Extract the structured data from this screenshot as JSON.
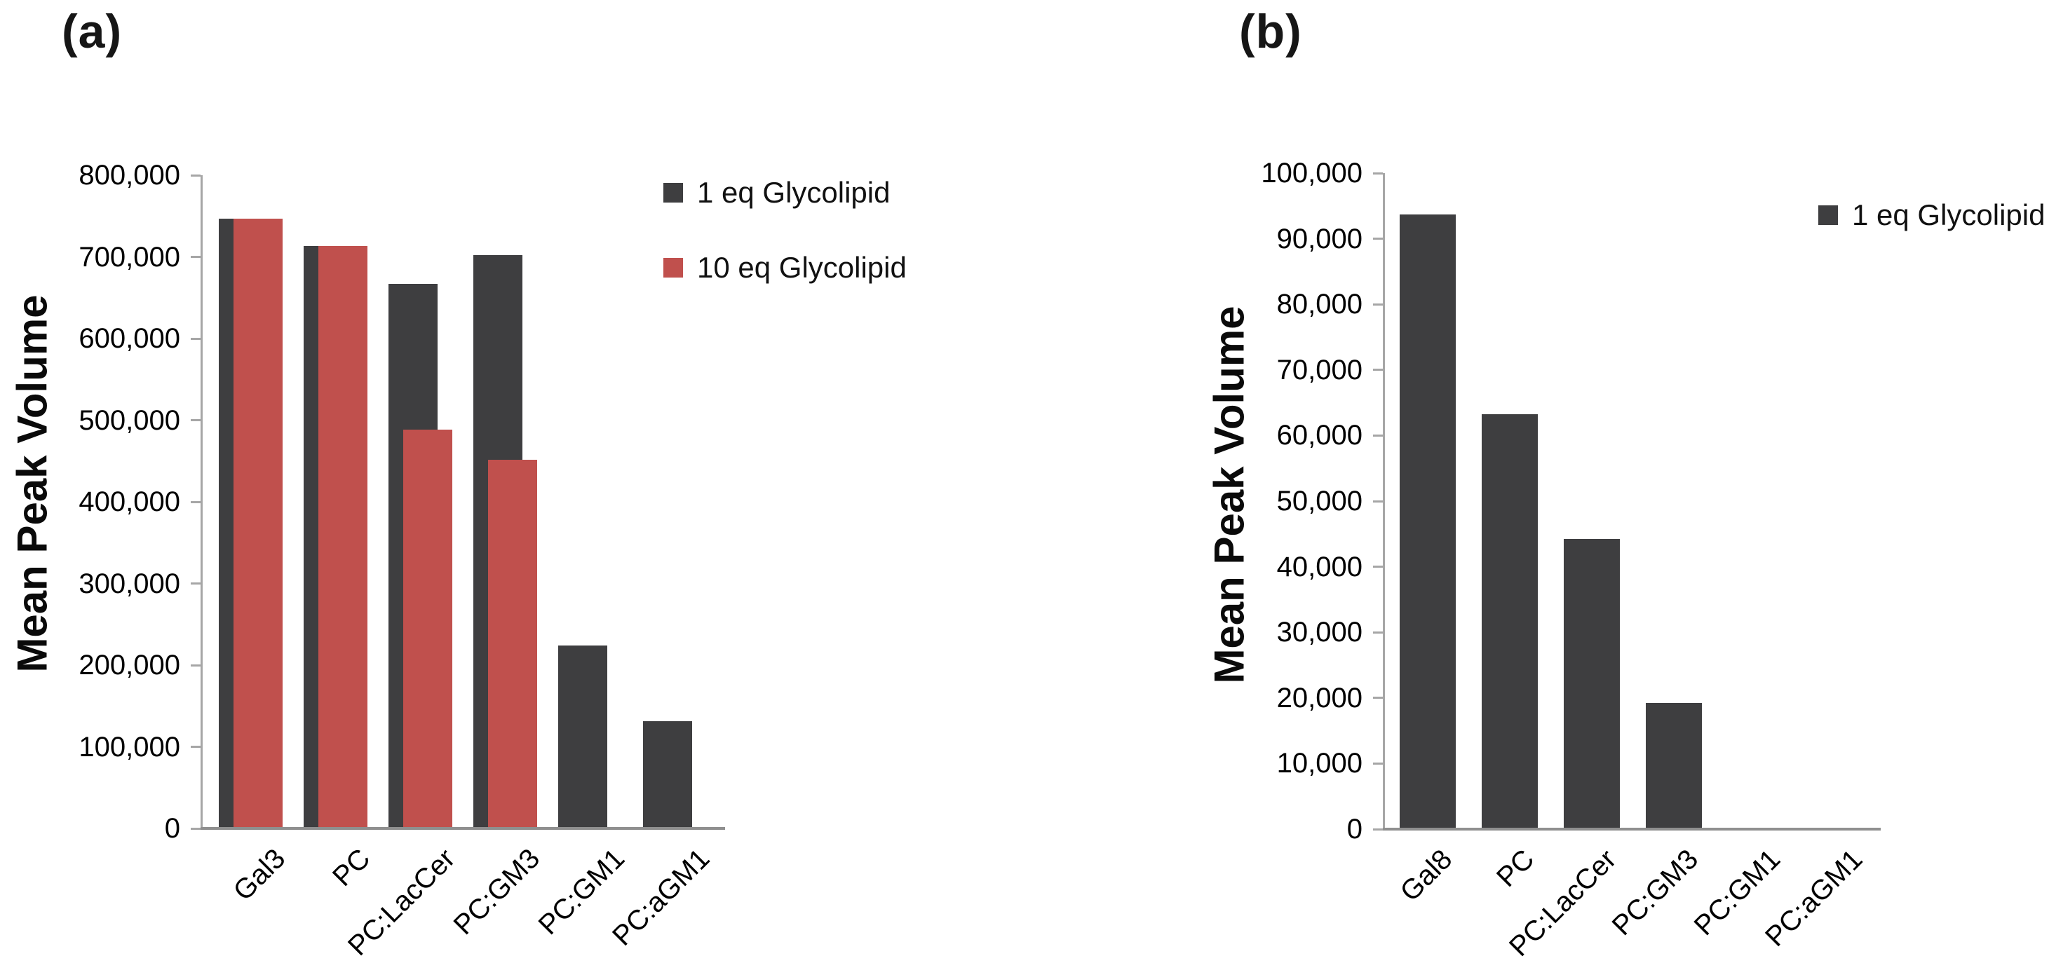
{
  "figure": {
    "background": "#ffffff",
    "description": "Two-panel bar figure of mean peak volumes for glycolipid-containing samples"
  },
  "colors": {
    "bar_dark": "#3e3e40",
    "bar_red": "#c0504d",
    "axis": "#a6a6a6",
    "baseline": "#8f8f8f",
    "text": "#000000",
    "background": "#ffffff"
  },
  "chart_data": [
    {
      "type": "bar",
      "panel": "(a)",
      "title": "",
      "xlabel": "",
      "ylabel": "Mean Peak Volume",
      "categories": [
        "Gal3",
        "PC",
        "PC:LacCer",
        "PC:GM3",
        "PC:GM1",
        "PC:aGM1"
      ],
      "series": [
        {
          "name": "1 eq Glycolipid",
          "color": "#3e3e40",
          "values": [
            745000,
            712000,
            665000,
            700000,
            222000,
            130000
          ]
        },
        {
          "name": "10 eq Glycolipid",
          "color": "#c0504d",
          "values": [
            745000,
            712000,
            487000,
            450000,
            null,
            null
          ]
        }
      ],
      "ylim": [
        0,
        800000
      ],
      "ytick_values": [
        0,
        100000,
        200000,
        300000,
        400000,
        500000,
        600000,
        700000,
        800000
      ],
      "ytick_labels": [
        "0",
        "100,000",
        "200,000",
        "300,000",
        "400,000",
        "500,000",
        "600,000",
        "700,000",
        "800,000"
      ],
      "grid": false,
      "legend_position": "top-right",
      "bar_layout": "overlapping, red series drawn in front and offset right",
      "xtick_rotation_deg": 45
    },
    {
      "type": "bar",
      "panel": "(b)",
      "title": "",
      "xlabel": "",
      "ylabel": "Mean Peak Volume",
      "categories": [
        "Gal8",
        "PC",
        "PC:LacCer",
        "PC:GM3",
        "PC:GM1",
        "PC:aGM1"
      ],
      "series": [
        {
          "name": "1 eq Glycolipid",
          "color": "#3e3e40",
          "values": [
            93500,
            63000,
            44000,
            19000,
            0,
            0
          ]
        }
      ],
      "ylim": [
        0,
        100000
      ],
      "ytick_values": [
        0,
        10000,
        20000,
        30000,
        40000,
        50000,
        60000,
        70000,
        80000,
        90000,
        100000
      ],
      "ytick_labels": [
        "0",
        "10,000",
        "20,000",
        "30,000",
        "40,000",
        "50,000",
        "60,000",
        "70,000",
        "80,000",
        "90,000",
        "100,000"
      ],
      "grid": false,
      "legend_position": "top-right",
      "bar_layout": "single series, centered bars",
      "xtick_rotation_deg": 45
    }
  ]
}
